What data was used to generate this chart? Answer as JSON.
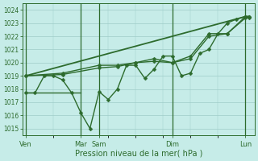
{
  "title": "Pression niveau de la mer( hPa )",
  "bg_color": "#c6ece8",
  "grid_color": "#9eccc8",
  "line_color": "#2d6b2d",
  "ylim": [
    1014.5,
    1024.5
  ],
  "yticks": [
    1015,
    1016,
    1017,
    1018,
    1019,
    1020,
    1021,
    1022,
    1023,
    1024
  ],
  "xlim": [
    -0.2,
    12.5
  ],
  "xtick_positions": [
    0,
    3,
    4,
    8,
    12
  ],
  "xtick_labels": [
    "Ven",
    "Mar",
    "Sam",
    "Dim",
    "Lun"
  ],
  "vline_positions": [
    0,
    3,
    4,
    8,
    12
  ],
  "series": [
    {
      "x": [
        0,
        0.5,
        1.0,
        1.5,
        2.0,
        2.5,
        3.0,
        3.5,
        4.0,
        4.5,
        5.0,
        5.5,
        6.0,
        6.5,
        7.0,
        7.5,
        8.0,
        8.5,
        9.0,
        9.5,
        10.0,
        10.5,
        11.0,
        11.5,
        12.0,
        12.2
      ],
      "y": [
        1017.7,
        1017.7,
        1019.0,
        1019.0,
        1018.7,
        1017.7,
        1016.2,
        1015.0,
        1017.8,
        1017.2,
        1018.0,
        1019.8,
        1019.8,
        1018.8,
        1019.5,
        1020.5,
        1020.5,
        1019.0,
        1019.2,
        1020.7,
        1021.0,
        1022.2,
        1023.0,
        1023.3,
        1023.5,
        1023.5
      ],
      "marker": "D",
      "markersize": 2.5,
      "linewidth": 1.0
    },
    {
      "x": [
        0,
        4,
        8,
        12,
        12.2
      ],
      "y": [
        1019.0,
        1020.5,
        1022.0,
        1023.5,
        1023.5
      ],
      "marker": null,
      "markersize": 0,
      "linewidth": 1.3
    },
    {
      "x": [
        0,
        2,
        4,
        5,
        6,
        7,
        8,
        9,
        10,
        11,
        12,
        12.2
      ],
      "y": [
        1019.0,
        1019.2,
        1019.8,
        1019.8,
        1020.0,
        1020.3,
        1020.0,
        1020.5,
        1022.2,
        1022.2,
        1023.5,
        1023.5
      ],
      "marker": "D",
      "markersize": 2.5,
      "linewidth": 1.0
    },
    {
      "x": [
        0,
        2,
        4,
        5,
        6,
        7,
        8,
        9,
        10,
        11,
        12,
        12.2
      ],
      "y": [
        1019.0,
        1019.1,
        1019.6,
        1019.7,
        1020.0,
        1020.1,
        1020.0,
        1020.3,
        1022.0,
        1022.2,
        1023.4,
        1023.4
      ],
      "marker": "D",
      "markersize": 2.5,
      "linewidth": 1.0
    },
    {
      "x": [
        0,
        0.5,
        1.0,
        1.5,
        2.0,
        2.5,
        3.0
      ],
      "y": [
        1017.7,
        1017.7,
        1017.7,
        1017.7,
        1017.7,
        1017.7,
        1017.7
      ],
      "marker": null,
      "markersize": 0,
      "linewidth": 1.0
    }
  ]
}
